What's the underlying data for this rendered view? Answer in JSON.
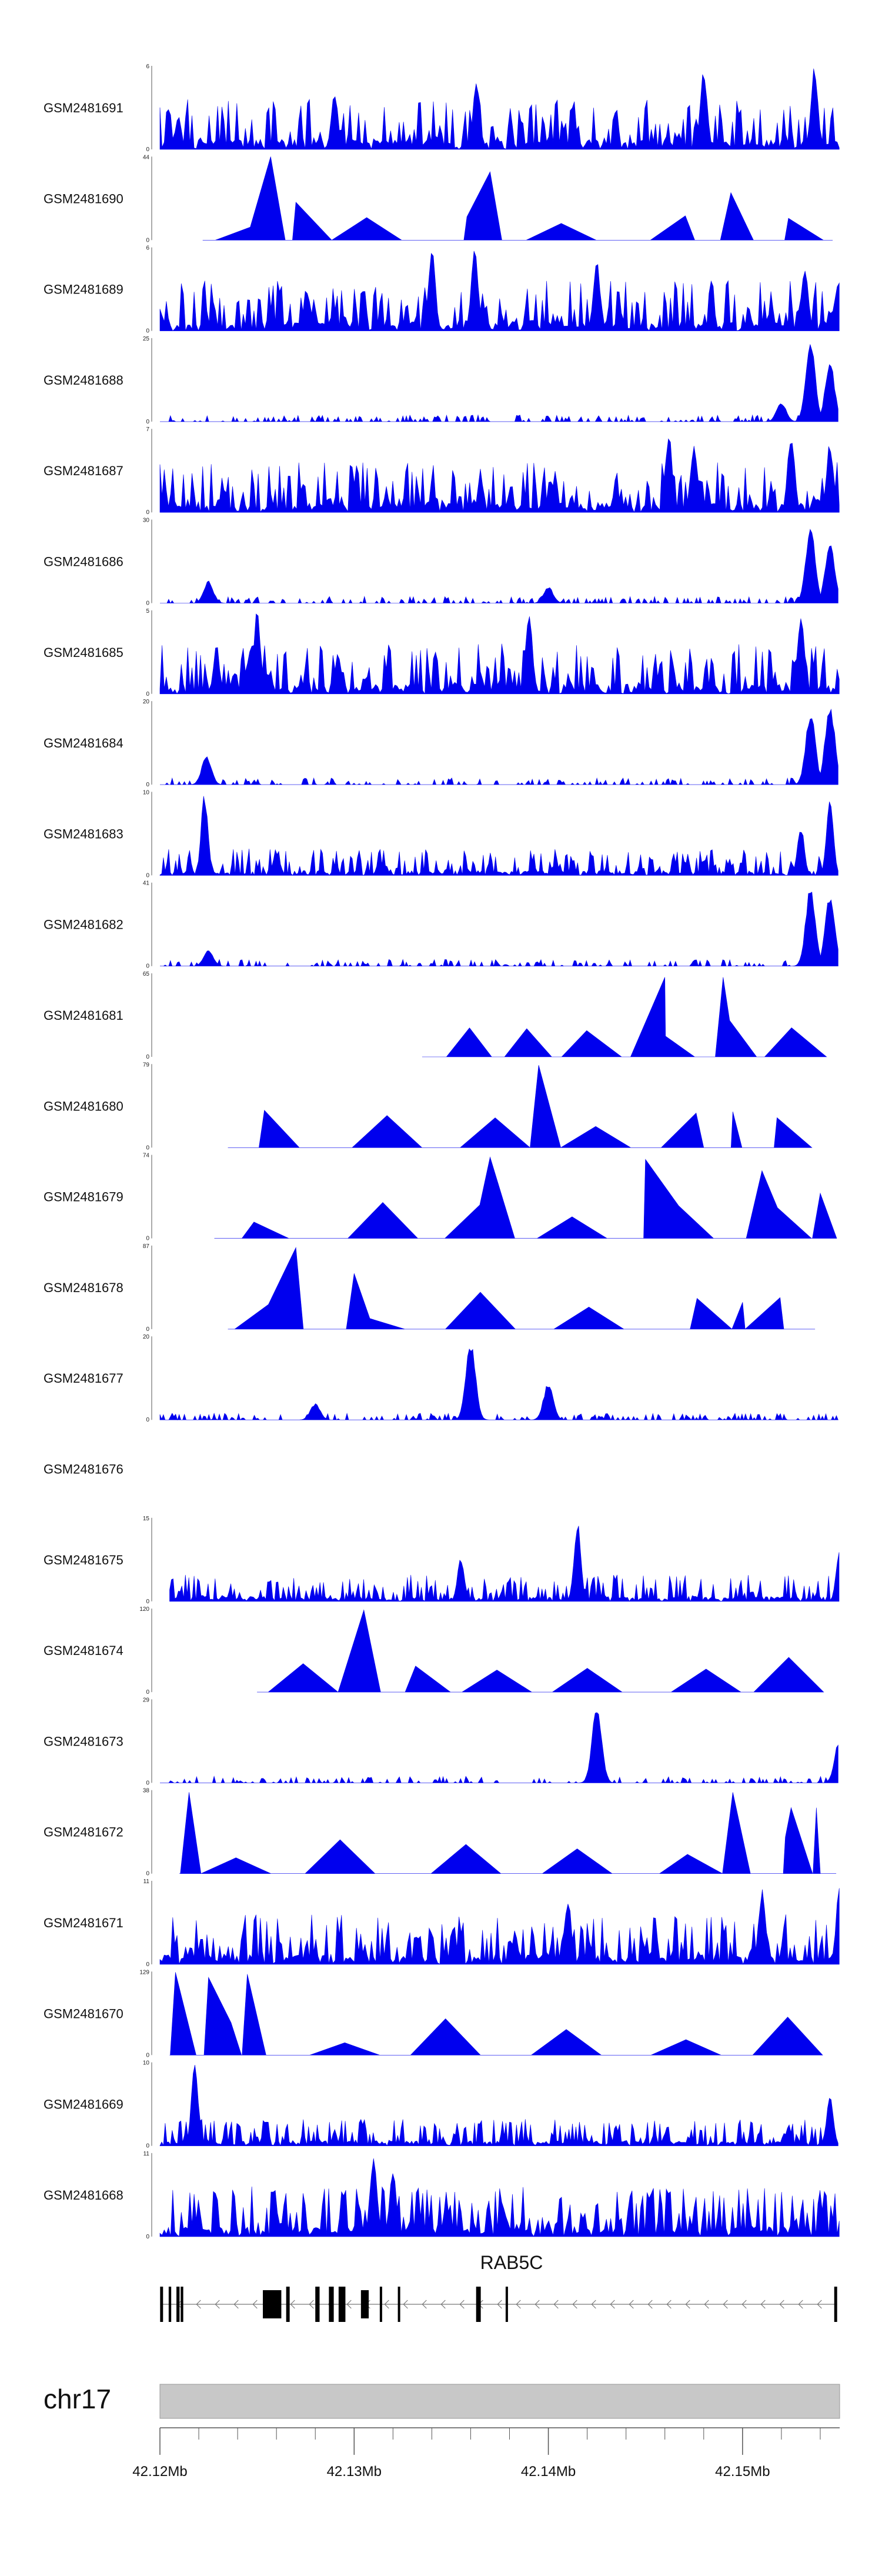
{
  "colors": {
    "signal": "#0000ee",
    "axis": "#555555",
    "ideogram": "#c8c8c8",
    "gene": "#000000",
    "intron": "#777777"
  },
  "chart_data": {
    "type": "area",
    "title": "",
    "region": {
      "chromosome": "chr17",
      "start_mb": 42.12,
      "end_mb": 42.155
    },
    "tracks": [
      {
        "name": "GSM2481691",
        "ymax": 6,
        "ymin": 0,
        "data_start_mb": 42.12,
        "pattern": "dense",
        "peaks": [
          [
            42.129,
            4
          ],
          [
            42.1363,
            5
          ],
          [
            42.148,
            6
          ],
          [
            42.1537,
            6
          ]
        ]
      },
      {
        "name": "GSM2481690",
        "ymax": 44,
        "ymin": 0,
        "data_start_mb": 42.1222,
        "pattern": "tri",
        "peaks": [
          [
            42.1257,
            44
          ],
          [
            42.127,
            20
          ],
          [
            42.137,
            36
          ],
          [
            42.1494,
            25
          ],
          [
            42.1526,
            10
          ]
        ]
      },
      {
        "name": "GSM2481689",
        "ymax": 6,
        "ymin": 0,
        "data_start_mb": 42.12,
        "pattern": "dense",
        "peaks": [
          [
            42.134,
            6
          ],
          [
            42.1362,
            6
          ],
          [
            42.1425,
            5
          ],
          [
            42.1532,
            5
          ]
        ]
      },
      {
        "name": "GSM2481688",
        "ymax": 25,
        "ymin": 0,
        "data_start_mb": 42.12,
        "pattern": "low",
        "peaks": [
          [
            42.1535,
            24
          ],
          [
            42.1545,
            18
          ],
          [
            42.152,
            6
          ]
        ]
      },
      {
        "name": "GSM2481687",
        "ymax": 7,
        "ymin": 0,
        "data_start_mb": 42.12,
        "pattern": "dense",
        "peaks": [
          [
            42.1462,
            7
          ],
          [
            42.1475,
            6
          ],
          [
            42.1525,
            7
          ],
          [
            42.1545,
            6
          ]
        ]
      },
      {
        "name": "GSM2481686",
        "ymax": 30,
        "ymin": 0,
        "data_start_mb": 42.12,
        "pattern": "low",
        "peaks": [
          [
            42.1225,
            8
          ],
          [
            42.14,
            6
          ],
          [
            42.1535,
            29
          ],
          [
            42.1545,
            22
          ]
        ]
      },
      {
        "name": "GSM2481685",
        "ymax": 5,
        "ymin": 0,
        "data_start_mb": 42.12,
        "pattern": "dense",
        "peaks": [
          [
            42.125,
            5
          ],
          [
            42.139,
            5
          ],
          [
            42.153,
            5
          ]
        ]
      },
      {
        "name": "GSM2481684",
        "ymax": 20,
        "ymin": 0,
        "data_start_mb": 42.12,
        "pattern": "low",
        "peaks": [
          [
            42.1224,
            7
          ],
          [
            42.1535,
            18
          ],
          [
            42.1545,
            20
          ]
        ]
      },
      {
        "name": "GSM2481683",
        "ymax": 10,
        "ymin": 0,
        "data_start_mb": 42.12,
        "pattern": "dense-low",
        "peaks": [
          [
            42.1223,
            10
          ],
          [
            42.126,
            3
          ],
          [
            42.153,
            6
          ],
          [
            42.1545,
            9
          ]
        ]
      },
      {
        "name": "GSM2481682",
        "ymax": 41,
        "ymin": 0,
        "data_start_mb": 42.12,
        "pattern": "low",
        "peaks": [
          [
            42.1225,
            8
          ],
          [
            42.1535,
            40
          ],
          [
            42.1545,
            36
          ]
        ]
      },
      {
        "name": "GSM2481681",
        "ymax": 65,
        "ymin": 0,
        "data_start_mb": 42.1335,
        "pattern": "tri",
        "peaks": [
          [
            42.146,
            62
          ],
          [
            42.149,
            62
          ]
        ]
      },
      {
        "name": "GSM2481680",
        "ymax": 79,
        "ymin": 0,
        "data_start_mb": 42.1235,
        "pattern": "tri",
        "peaks": [
          [
            42.1395,
            78
          ],
          [
            42.1495,
            34
          ]
        ]
      },
      {
        "name": "GSM2481679",
        "ymax": 74,
        "ymin": 0,
        "data_start_mb": 42.1228,
        "pattern": "tri",
        "peaks": [
          [
            42.137,
            72
          ],
          [
            42.145,
            70
          ],
          [
            42.151,
            60
          ],
          [
            42.154,
            40
          ]
        ]
      },
      {
        "name": "GSM2481678",
        "ymax": 87,
        "ymin": 0,
        "data_start_mb": 42.1235,
        "pattern": "tri",
        "peaks": [
          [
            42.127,
            85
          ],
          [
            42.13,
            58
          ],
          [
            42.15,
            28
          ]
        ]
      },
      {
        "name": "GSM2481677",
        "ymax": 20,
        "ymin": 0,
        "data_start_mb": 42.12,
        "pattern": "low",
        "peaks": [
          [
            42.128,
            4
          ],
          [
            42.136,
            19
          ],
          [
            42.14,
            9
          ]
        ]
      },
      {
        "name": "GSM2481676",
        "ymax": null,
        "ymin": null,
        "data_start_mb": null,
        "pattern": "empty",
        "peaks": []
      },
      {
        "name": "GSM2481675",
        "ymax": 15,
        "ymin": 0,
        "data_start_mb": 42.1205,
        "pattern": "dense-low",
        "peaks": [
          [
            42.1355,
            8
          ],
          [
            42.1415,
            15
          ],
          [
            42.155,
            10
          ]
        ]
      },
      {
        "name": "GSM2481674",
        "ymax": 120,
        "ymin": 0,
        "data_start_mb": 42.125,
        "pattern": "tri",
        "peaks": [
          [
            42.1305,
            118
          ]
        ]
      },
      {
        "name": "GSM2481673",
        "ymax": 29,
        "ymin": 0,
        "data_start_mb": 42.12,
        "pattern": "low",
        "peaks": [
          [
            42.1425,
            28
          ],
          [
            42.155,
            16
          ]
        ]
      },
      {
        "name": "GSM2481672",
        "ymax": 38,
        "ymin": 0,
        "data_start_mb": 42.121,
        "pattern": "tri",
        "peaks": [
          [
            42.1215,
            37
          ],
          [
            42.1495,
            37
          ],
          [
            42.1525,
            30
          ],
          [
            42.1538,
            30
          ]
        ]
      },
      {
        "name": "GSM2481671",
        "ymax": 11,
        "ymin": 0,
        "data_start_mb": 42.12,
        "pattern": "dense",
        "peaks": [
          [
            42.141,
            9
          ],
          [
            42.151,
            10
          ],
          [
            42.155,
            11
          ]
        ]
      },
      {
        "name": "GSM2481670",
        "ymax": 129,
        "ymin": 0,
        "data_start_mb": 42.1205,
        "pattern": "tri",
        "peaks": [
          [
            42.1208,
            128
          ],
          [
            42.1225,
            120
          ],
          [
            42.1245,
            125
          ]
        ]
      },
      {
        "name": "GSM2481669",
        "ymax": 10,
        "ymin": 0,
        "data_start_mb": 42.12,
        "pattern": "dense-low",
        "peaks": [
          [
            42.1218,
            10
          ],
          [
            42.1545,
            6
          ]
        ]
      },
      {
        "name": "GSM2481668",
        "ymax": 11,
        "ymin": 0,
        "data_start_mb": 42.12,
        "pattern": "dense",
        "peaks": [
          [
            42.131,
            11
          ],
          [
            42.132,
            9
          ]
        ]
      }
    ],
    "gene": {
      "name": "RAB5C",
      "strand": "-",
      "exons_mb": [
        [
          42.12001,
          42.12016
        ],
        [
          42.12045,
          42.12058
        ],
        [
          42.12085,
          42.12101
        ],
        [
          42.12107,
          42.1212
        ],
        [
          42.1253,
          42.12625
        ],
        [
          42.1265,
          42.12668
        ],
        [
          42.128,
          42.12822
        ],
        [
          42.1287,
          42.12895
        ],
        [
          42.1292,
          42.12955
        ],
        [
          42.13035,
          42.13075
        ],
        [
          42.13132,
          42.13144
        ],
        [
          42.13225,
          42.13232
        ],
        [
          42.13628,
          42.13652
        ],
        [
          42.1378,
          42.1379
        ],
        [
          42.15472,
          42.15487
        ]
      ]
    },
    "ideogram": {
      "chromosome": "chr17"
    },
    "xaxis": {
      "ticks_mb": [
        42.12,
        42.13,
        42.14,
        42.15
      ],
      "tick_labels": [
        "42.12Mb",
        "42.13Mb",
        "42.14Mb",
        "42.15Mb"
      ]
    }
  }
}
